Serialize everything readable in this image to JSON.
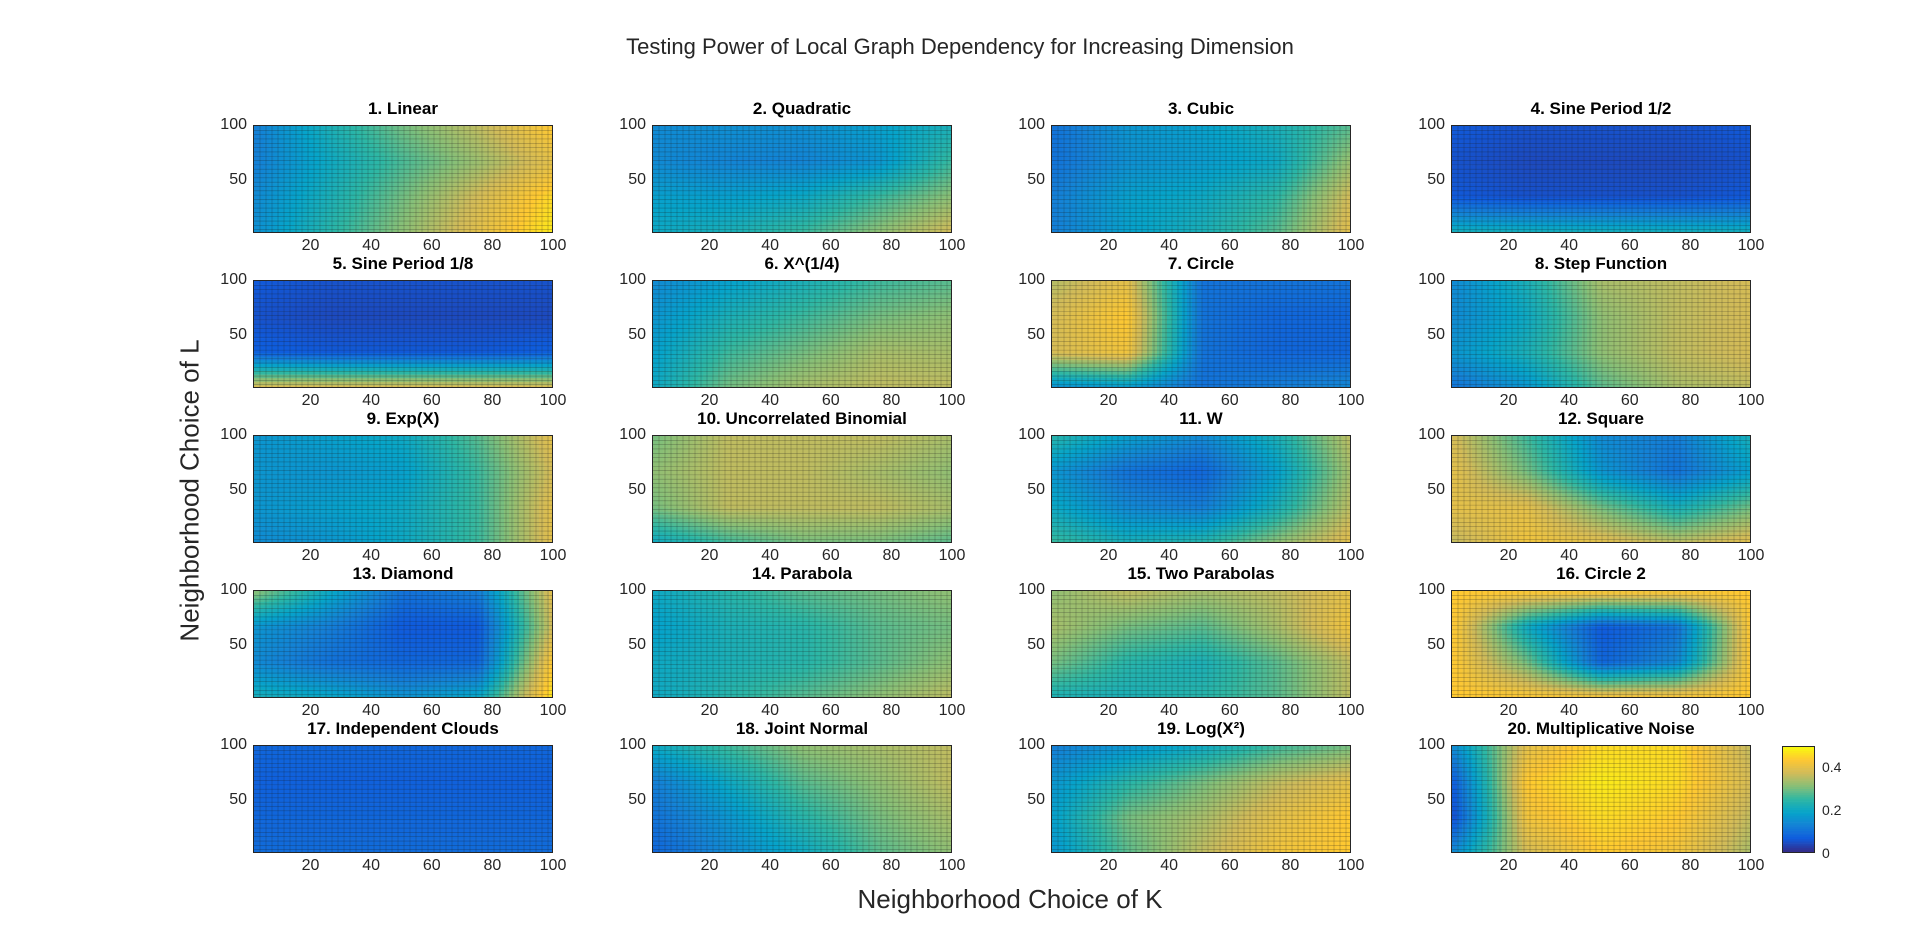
{
  "figure": {
    "title": "Testing Power of Local Graph Dependency for Increasing Dimension",
    "xlabel": "Neighborhood Choice of K",
    "ylabel": "Neighborhood Choice of L"
  },
  "colormap": {
    "name": "parula",
    "stops": [
      "#352a87",
      "#0f5cdd",
      "#1481d6",
      "#06a4ca",
      "#2eb7a4",
      "#87bf77",
      "#d1bb59",
      "#fec832",
      "#f9fb0e"
    ]
  },
  "colorbar": {
    "ticks": [
      "0",
      "0.2",
      "0.4"
    ],
    "range": [
      0,
      0.5
    ]
  },
  "chart_data": {
    "type": "heatmap",
    "layout": "5 rows x 4 columns of small multiples",
    "x_ticks": [
      20,
      40,
      60,
      80,
      100
    ],
    "y_ticks": [
      50,
      100
    ],
    "xlim": [
      1,
      100
    ],
    "ylim": [
      1,
      100
    ],
    "grid": true,
    "z_range": [
      0,
      0.5
    ],
    "panels": [
      {
        "title": "1. Linear",
        "z": [
          [
            0.12,
            0.22,
            0.3,
            0.36,
            0.44
          ],
          [
            0.12,
            0.2,
            0.27,
            0.33,
            0.4
          ],
          [
            0.14,
            0.22,
            0.3,
            0.38,
            0.46
          ],
          [
            0.15,
            0.24,
            0.32,
            0.4,
            0.48
          ]
        ]
      },
      {
        "title": "2. Quadratic",
        "z": [
          [
            0.14,
            0.15,
            0.15,
            0.18,
            0.22
          ],
          [
            0.14,
            0.13,
            0.13,
            0.16,
            0.26
          ],
          [
            0.18,
            0.18,
            0.2,
            0.26,
            0.32
          ],
          [
            0.2,
            0.22,
            0.26,
            0.32,
            0.38
          ]
        ]
      },
      {
        "title": "3. Cubic",
        "z": [
          [
            0.1,
            0.16,
            0.18,
            0.22,
            0.28
          ],
          [
            0.1,
            0.15,
            0.17,
            0.2,
            0.33
          ],
          [
            0.12,
            0.18,
            0.2,
            0.25,
            0.38
          ],
          [
            0.12,
            0.18,
            0.22,
            0.28,
            0.4
          ]
        ]
      },
      {
        "title": "4. Sine Period 1/2",
        "z": [
          [
            0.06,
            0.05,
            0.05,
            0.05,
            0.06
          ],
          [
            0.05,
            0.04,
            0.04,
            0.04,
            0.05
          ],
          [
            0.06,
            0.05,
            0.05,
            0.05,
            0.06
          ],
          [
            0.22,
            0.22,
            0.22,
            0.22,
            0.22
          ]
        ]
      },
      {
        "title": "5. Sine Period 1/8",
        "z": [
          [
            0.06,
            0.05,
            0.05,
            0.05,
            0.05
          ],
          [
            0.05,
            0.04,
            0.04,
            0.04,
            0.04
          ],
          [
            0.07,
            0.06,
            0.06,
            0.06,
            0.07
          ],
          [
            0.4,
            0.4,
            0.4,
            0.4,
            0.4
          ]
        ]
      },
      {
        "title": "6. X^(1/4)",
        "z": [
          [
            0.14,
            0.18,
            0.22,
            0.26,
            0.28
          ],
          [
            0.16,
            0.22,
            0.26,
            0.3,
            0.32
          ],
          [
            0.18,
            0.26,
            0.3,
            0.34,
            0.34
          ],
          [
            0.2,
            0.3,
            0.34,
            0.36,
            0.36
          ]
        ]
      },
      {
        "title": "7. Circle",
        "z": [
          [
            0.35,
            0.4,
            0.1,
            0.1,
            0.1
          ],
          [
            0.38,
            0.44,
            0.1,
            0.08,
            0.08
          ],
          [
            0.38,
            0.42,
            0.1,
            0.08,
            0.08
          ],
          [
            0.14,
            0.16,
            0.1,
            0.12,
            0.14
          ]
        ]
      },
      {
        "title": "8. Step Function",
        "z": [
          [
            0.14,
            0.22,
            0.34,
            0.36,
            0.38
          ],
          [
            0.14,
            0.2,
            0.32,
            0.36,
            0.38
          ],
          [
            0.16,
            0.22,
            0.32,
            0.36,
            0.38
          ],
          [
            0.1,
            0.16,
            0.28,
            0.34,
            0.36
          ]
        ]
      },
      {
        "title": "9. Exp(X)",
        "z": [
          [
            0.16,
            0.18,
            0.2,
            0.28,
            0.4
          ],
          [
            0.16,
            0.16,
            0.18,
            0.26,
            0.38
          ],
          [
            0.16,
            0.18,
            0.2,
            0.26,
            0.4
          ],
          [
            0.14,
            0.16,
            0.2,
            0.26,
            0.4
          ]
        ]
      },
      {
        "title": "10. Uncorrelated Binomial",
        "z": [
          [
            0.3,
            0.36,
            0.36,
            0.36,
            0.34
          ],
          [
            0.32,
            0.36,
            0.36,
            0.34,
            0.32
          ],
          [
            0.3,
            0.36,
            0.36,
            0.36,
            0.34
          ],
          [
            0.2,
            0.26,
            0.3,
            0.3,
            0.28
          ]
        ]
      },
      {
        "title": "11. W",
        "z": [
          [
            0.24,
            0.18,
            0.14,
            0.22,
            0.36
          ],
          [
            0.16,
            0.1,
            0.08,
            0.18,
            0.34
          ],
          [
            0.2,
            0.14,
            0.12,
            0.22,
            0.36
          ],
          [
            0.26,
            0.22,
            0.24,
            0.32,
            0.4
          ]
        ]
      },
      {
        "title": "12. Square",
        "z": [
          [
            0.38,
            0.26,
            0.14,
            0.12,
            0.22
          ],
          [
            0.4,
            0.3,
            0.16,
            0.1,
            0.18
          ],
          [
            0.4,
            0.4,
            0.3,
            0.22,
            0.3
          ],
          [
            0.36,
            0.42,
            0.4,
            0.36,
            0.4
          ]
        ]
      },
      {
        "title": "13. Diamond",
        "z": [
          [
            0.32,
            0.2,
            0.1,
            0.12,
            0.4
          ],
          [
            0.16,
            0.12,
            0.06,
            0.06,
            0.38
          ],
          [
            0.14,
            0.1,
            0.08,
            0.08,
            0.44
          ],
          [
            0.22,
            0.2,
            0.16,
            0.2,
            0.48
          ]
        ]
      },
      {
        "title": "14. Parabola",
        "z": [
          [
            0.2,
            0.24,
            0.28,
            0.3,
            0.32
          ],
          [
            0.18,
            0.22,
            0.24,
            0.28,
            0.3
          ],
          [
            0.2,
            0.22,
            0.24,
            0.28,
            0.32
          ],
          [
            0.2,
            0.24,
            0.28,
            0.32,
            0.36
          ]
        ]
      },
      {
        "title": "15. Two Parabolas",
        "z": [
          [
            0.32,
            0.36,
            0.34,
            0.36,
            0.4
          ],
          [
            0.34,
            0.3,
            0.28,
            0.34,
            0.42
          ],
          [
            0.3,
            0.24,
            0.22,
            0.28,
            0.36
          ],
          [
            0.22,
            0.22,
            0.24,
            0.28,
            0.36
          ]
        ]
      },
      {
        "title": "16. Circle 2",
        "z": [
          [
            0.44,
            0.44,
            0.44,
            0.44,
            0.44
          ],
          [
            0.44,
            0.2,
            0.06,
            0.1,
            0.44
          ],
          [
            0.44,
            0.3,
            0.08,
            0.14,
            0.44
          ],
          [
            0.44,
            0.44,
            0.44,
            0.44,
            0.44
          ]
        ]
      },
      {
        "title": "17. Independent Clouds",
        "z": [
          [
            0.08,
            0.08,
            0.08,
            0.08,
            0.08
          ],
          [
            0.07,
            0.07,
            0.07,
            0.07,
            0.07
          ],
          [
            0.08,
            0.08,
            0.08,
            0.08,
            0.08
          ],
          [
            0.09,
            0.09,
            0.09,
            0.09,
            0.09
          ]
        ]
      },
      {
        "title": "18. Joint Normal",
        "z": [
          [
            0.2,
            0.26,
            0.32,
            0.34,
            0.36
          ],
          [
            0.12,
            0.2,
            0.28,
            0.32,
            0.36
          ],
          [
            0.1,
            0.16,
            0.24,
            0.3,
            0.34
          ],
          [
            0.08,
            0.14,
            0.2,
            0.28,
            0.32
          ]
        ]
      },
      {
        "title": "19. Log(X²)",
        "z": [
          [
            0.12,
            0.16,
            0.2,
            0.26,
            0.3
          ],
          [
            0.16,
            0.24,
            0.3,
            0.36,
            0.4
          ],
          [
            0.18,
            0.3,
            0.34,
            0.4,
            0.44
          ],
          [
            0.16,
            0.28,
            0.36,
            0.42,
            0.44
          ]
        ]
      },
      {
        "title": "20. Multiplicative Noise",
        "z": [
          [
            0.14,
            0.4,
            0.46,
            0.46,
            0.36
          ],
          [
            0.06,
            0.44,
            0.48,
            0.46,
            0.38
          ],
          [
            0.04,
            0.42,
            0.46,
            0.44,
            0.36
          ],
          [
            0.14,
            0.38,
            0.44,
            0.42,
            0.34
          ]
        ]
      }
    ]
  }
}
